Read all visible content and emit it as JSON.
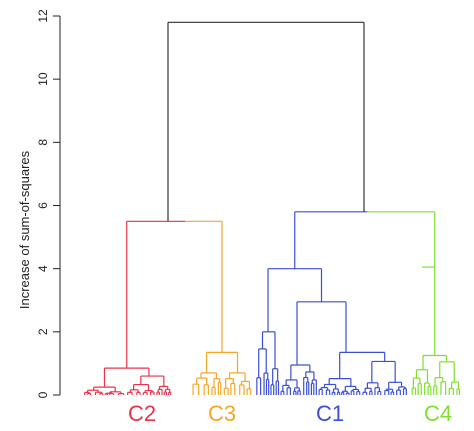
{
  "chart_data": {
    "type": "dendrogram",
    "title": "",
    "xlabel": "",
    "ylabel": "Increase of sum-of-squares",
    "ylim": [
      0,
      12
    ],
    "yticks": [
      0,
      2,
      4,
      6,
      8,
      10,
      12
    ],
    "grid": false,
    "merges": [
      {
        "height": 11.8,
        "clusters": [
          "C2 + C3",
          "C1 + C4"
        ],
        "color": "#333333"
      },
      {
        "height": 5.5,
        "clusters": [
          "C2",
          "C3"
        ]
      },
      {
        "height": 5.8,
        "clusters": [
          "C1",
          "C4"
        ]
      }
    ],
    "clusters": [
      {
        "name": "C2",
        "color": "#e8334a",
        "height": 5.5,
        "subtree": {
          "top": 0.85,
          "sub": [
            0.25,
            0.6
          ]
        }
      },
      {
        "name": "C3",
        "color": "#f5a623",
        "height": 5.5,
        "subtree": {
          "top": 1.35,
          "sub": [
            0.7,
            0.7
          ]
        }
      },
      {
        "name": "C1",
        "color": "#3a4fd6",
        "height": 4.0,
        "subtree": {
          "left_top": 2.0,
          "right_top": 2.95,
          "right_sub": [
            1.35,
            0.95
          ]
        }
      },
      {
        "name": "C4",
        "color": "#7ee02d",
        "height": 4.05,
        "subtree": {
          "top": 1.25,
          "sub": [
            0.8,
            1.05
          ]
        }
      }
    ]
  }
}
